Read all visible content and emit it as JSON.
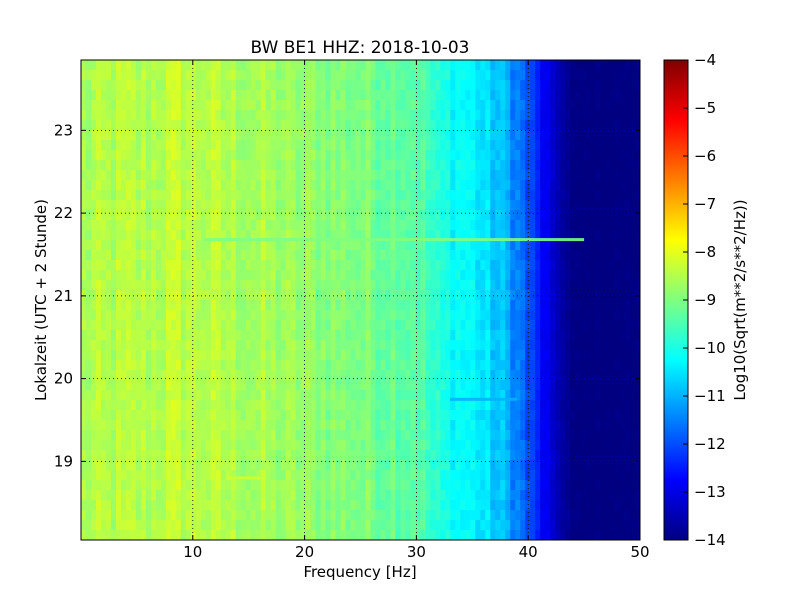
{
  "chart_data": {
    "type": "heatmap",
    "title": "BW BE1 HHZ: 2018-10-03",
    "xlabel": "Frequency [Hz]",
    "ylabel": "Lokalzeit (UTC + 2 Stunde)",
    "xlim": [
      0,
      50
    ],
    "ylim": [
      23.85,
      18.05
    ],
    "y_inverted": true,
    "x_ticks": [
      "10",
      "20",
      "30",
      "40",
      "50"
    ],
    "x_tick_values": [
      10,
      20,
      30,
      40,
      50
    ],
    "y_ticks": [
      "19",
      "20",
      "21",
      "22",
      "23"
    ],
    "y_tick_values": [
      19,
      20,
      21,
      22,
      23
    ],
    "grid": true,
    "colormap": "jet",
    "colorbar": {
      "label": "Log10(Sqrt(m**2/s**2/Hz))",
      "range": [
        -14,
        -4
      ],
      "ticks": [
        "−4",
        "−5",
        "−6",
        "−7",
        "−8",
        "−9",
        "−10",
        "−11",
        "−12",
        "−13",
        "−14"
      ],
      "tick_values": [
        -4,
        -5,
        -6,
        -7,
        -8,
        -9,
        -10,
        -11,
        -12,
        -13,
        -14
      ]
    },
    "spectral_profile": {
      "frequency_hz": [
        0,
        5,
        8,
        10,
        15,
        20,
        25,
        30,
        32,
        35,
        38,
        40,
        42,
        44,
        50
      ],
      "log10_amplitude": [
        -8.6,
        -8.5,
        -8.4,
        -8.4,
        -8.6,
        -8.8,
        -9.0,
        -9.3,
        -10.0,
        -10.3,
        -11.0,
        -12.0,
        -13.2,
        -14.0,
        -14.0
      ]
    },
    "features": [
      {
        "kind": "horizontal_line",
        "time": 21.68,
        "freq_range": [
          11,
          45
        ],
        "log10_amplitude": -9.0
      },
      {
        "kind": "horizontal_line",
        "time": 19.75,
        "freq_range": [
          33,
          39
        ],
        "log10_amplitude": -11.0
      },
      {
        "kind": "horizontal_line",
        "time": 18.8,
        "freq_range": [
          13,
          16
        ],
        "log10_amplitude": -8.2
      }
    ]
  }
}
